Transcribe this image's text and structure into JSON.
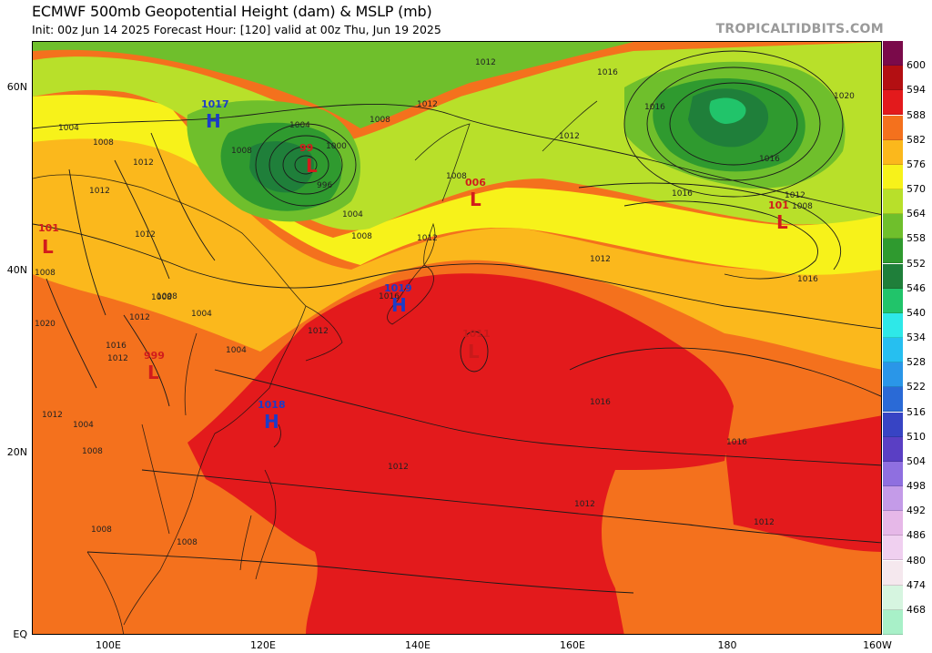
{
  "header": {
    "title": "ECMWF 500mb Geopotential Height (dam) & MSLP (mb)",
    "subtitle": "Init: 00z Jun 14 2025   Forecast Hour: [120]   valid at 00z Thu, Jun 19 2025",
    "brand": "TROPICALTIDBITS.COM"
  },
  "axes": {
    "lat_labels": [
      "60N",
      "40N",
      "20N",
      "EQ"
    ],
    "lon_labels": [
      "100E",
      "120E",
      "140E",
      "160E",
      "180",
      "160W"
    ]
  },
  "colorbar": {
    "levels": [
      "600",
      "594",
      "588",
      "582",
      "576",
      "570",
      "564",
      "558",
      "552",
      "546",
      "540",
      "534",
      "528",
      "522",
      "516",
      "510",
      "504",
      "498",
      "492",
      "486",
      "480",
      "474",
      "468"
    ],
    "colors": [
      "#7a0a4a",
      "#b30f12",
      "#e31a1c",
      "#f4711d",
      "#fbb81c",
      "#f7f21a",
      "#b8e02a",
      "#6fbf2c",
      "#2f9a2f",
      "#1f7f3a",
      "#21c46a",
      "#2ee8e8",
      "#26bff0",
      "#2a96e8",
      "#2a6ad6",
      "#3744c4",
      "#5a3fc4",
      "#8f6fe0",
      "#c49be8",
      "#e6b8e8",
      "#f0d0f0",
      "#f5e8ee",
      "#d6f5e0",
      "#a8f0c8"
    ]
  },
  "pressure_centers": [
    {
      "type": "H",
      "value": "1017",
      "color": "#1b3cc8"
    },
    {
      "type": "L",
      "value": "99",
      "color": "#d21c1c"
    },
    {
      "type": "L",
      "value": "006",
      "color": "#d21c1c"
    },
    {
      "type": "L",
      "value": "101",
      "color": "#d21c1c"
    },
    {
      "type": "L",
      "value": "101",
      "color": "#d21c1c"
    },
    {
      "type": "H",
      "value": "1019",
      "color": "#1b3cc8"
    },
    {
      "type": "L",
      "value": "1011",
      "color": "#d21c1c"
    },
    {
      "type": "L",
      "value": "999",
      "color": "#d21c1c"
    },
    {
      "type": "H",
      "value": "1018",
      "color": "#1b3cc8"
    }
  ],
  "contour_labels": [
    "1004",
    "1008",
    "1012",
    "1012",
    "1008",
    "1004",
    "1008",
    "1000",
    "996",
    "1004",
    "1012",
    "1008",
    "1016",
    "1016",
    "1016",
    "1012",
    "1012",
    "1012",
    "1012",
    "1016",
    "1016",
    "1012",
    "1012",
    "1012",
    "1004",
    "1008",
    "1008",
    "1004",
    "1020",
    "1016",
    "1016",
    "1012",
    "1008",
    "1012",
    "1008",
    "1012",
    "1016",
    "1016",
    "1020",
    "1008",
    "1012",
    "1012",
    "1008",
    "1004",
    "1008",
    "1012",
    "1008"
  ]
}
